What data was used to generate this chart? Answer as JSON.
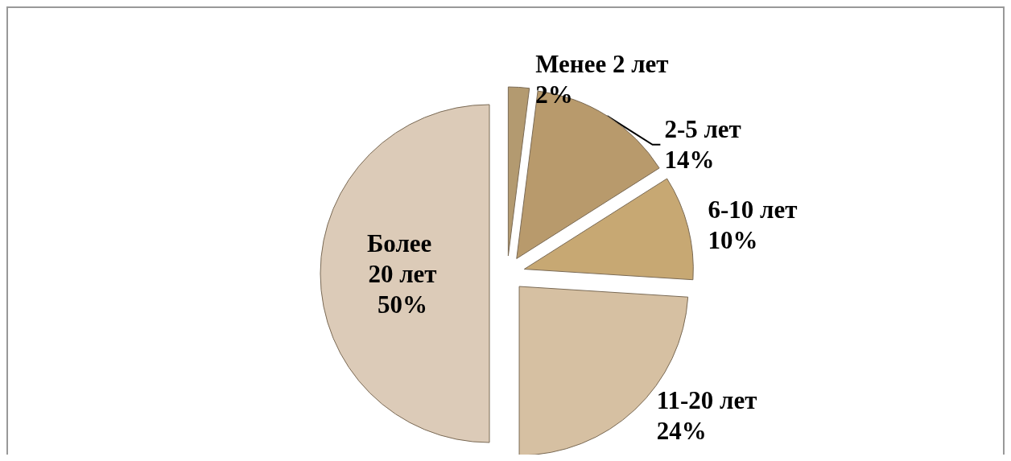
{
  "chart_data": {
    "type": "pie",
    "categories": [
      "Менее 2 лет",
      "2-5 лет",
      "6-10 лет",
      "11-20 лет",
      "Более 20 лет"
    ],
    "values": [
      2,
      14,
      10,
      24,
      50
    ],
    "colors": [
      "#b39a70",
      "#b89a6c",
      "#c7a873",
      "#d6c0a2",
      "#dccbb8"
    ],
    "value_labels": [
      "2%",
      "14%",
      "10%",
      "24%",
      "50%"
    ],
    "legend": false
  }
}
